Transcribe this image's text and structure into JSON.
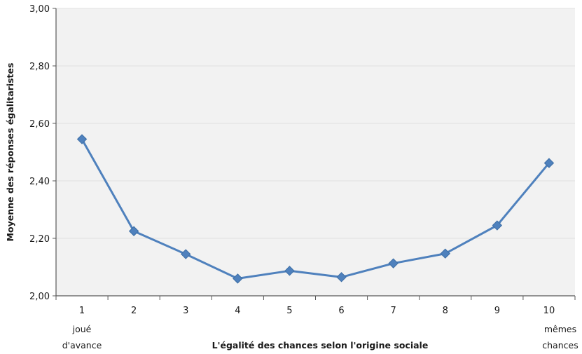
{
  "chart_data": {
    "type": "line",
    "x": [
      1,
      2,
      3,
      4,
      5,
      6,
      7,
      8,
      9,
      10
    ],
    "categories": [
      "1",
      "2",
      "3",
      "4",
      "5",
      "6",
      "7",
      "8",
      "9",
      "10"
    ],
    "series": [
      {
        "values": [
          2.545,
          2.225,
          2.145,
          2.06,
          2.087,
          2.065,
          2.113,
          2.147,
          2.245,
          2.462
        ]
      }
    ],
    "ylim": [
      2.0,
      3.0
    ],
    "yticks": [
      "2,00",
      "2,20",
      "2,40",
      "2,60",
      "2,80",
      "3,00"
    ],
    "ylabel": "Moyenne des réponses égalitaristes",
    "xlabel": "L'égalité des chances selon l'origine sociale",
    "x_endpoint_labels": {
      "left_line1": "joué",
      "left_line2": "d'avance",
      "right_line1": "mêmes",
      "right_line2": "chances"
    },
    "grid": "horizontal",
    "plot_background": "#f2f2f2",
    "grid_color": "#e0e0e0",
    "line_color": "#4f81bd",
    "axis_color": "#595959"
  }
}
